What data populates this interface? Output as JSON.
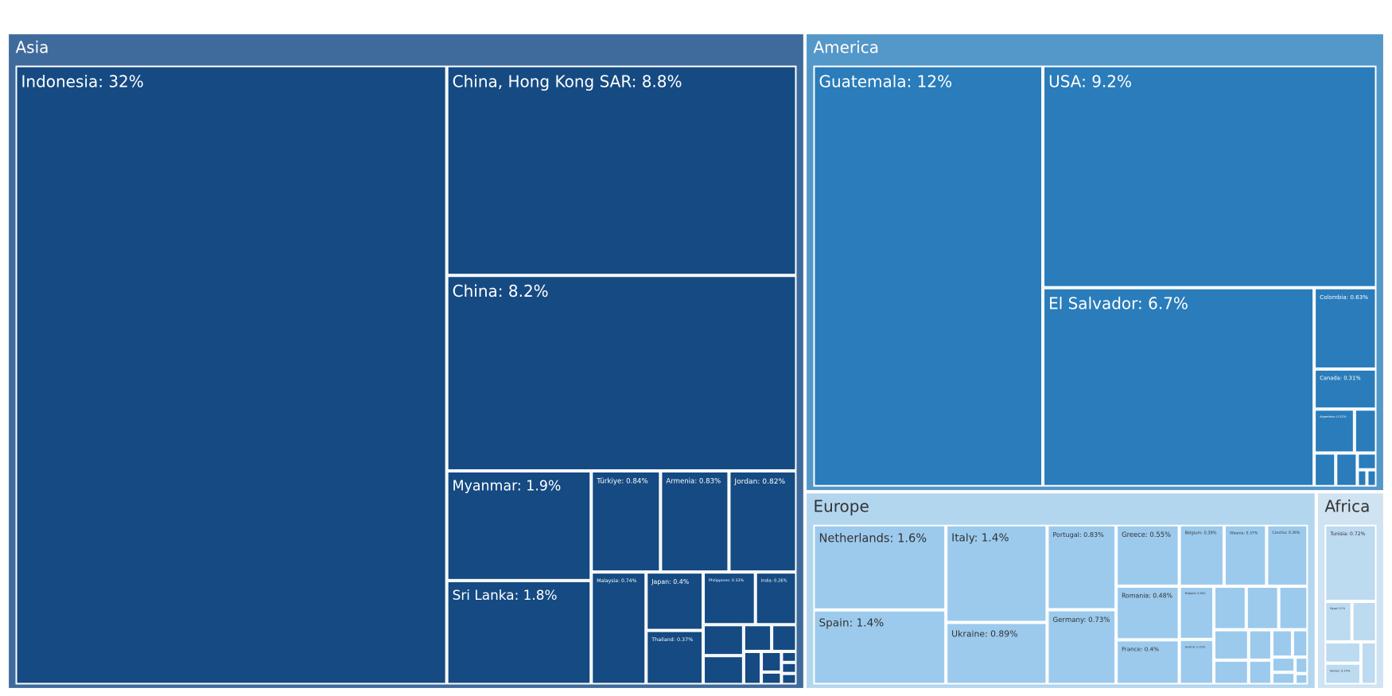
{
  "chart_data": {
    "type": "treemap",
    "unit": "%",
    "colors": {
      "Asia": {
        "parent": "#3f6a9c",
        "leaf": "#154a82",
        "text": "#ffffff"
      },
      "America": {
        "parent": "#5497c9",
        "leaf": "#2a7cba",
        "text": "#ffffff"
      },
      "Europe": {
        "parent": "#b3d6ef",
        "leaf": "#9ccaed",
        "text": "#333333"
      },
      "Africa": {
        "parent": "#cfe3f2",
        "leaf": "#bcdaf0",
        "text": "#333333"
      },
      "border": "#ffffff"
    },
    "groups": [
      {
        "name": "Asia",
        "children": [
          {
            "name": "Indonesia",
            "value": 32
          },
          {
            "name": "China, Hong Kong SAR",
            "value": 8.8
          },
          {
            "name": "China",
            "value": 8.2
          },
          {
            "name": "Myanmar",
            "value": 1.9
          },
          {
            "name": "Sri Lanka",
            "value": 1.8
          },
          {
            "name": "Türkiye",
            "value": 0.84
          },
          {
            "name": "Armenia",
            "value": 0.83
          },
          {
            "name": "Jordan",
            "value": 0.82
          },
          {
            "name": "Malaysia",
            "value": 0.74
          },
          {
            "name": "Japan",
            "value": 0.4
          },
          {
            "name": "Thailand",
            "value": 0.37
          },
          {
            "name": "Philippines",
            "value": 0.33
          },
          {
            "name": "India",
            "value": 0.26
          },
          {
            "name": "",
            "value": 0.15
          },
          {
            "name": "",
            "value": 0.14
          },
          {
            "name": "",
            "value": 0.09
          },
          {
            "name": "",
            "value": 0.08
          },
          {
            "name": "",
            "value": 0.07
          },
          {
            "name": "",
            "value": 0.05
          },
          {
            "name": "",
            "value": 0.03
          },
          {
            "name": "",
            "value": 0.02
          },
          {
            "name": "",
            "value": 0.02
          },
          {
            "name": "",
            "value": 0.02
          }
        ]
      },
      {
        "name": "America",
        "children": [
          {
            "name": "Guatemala",
            "value": 12
          },
          {
            "name": "USA",
            "value": 9.2
          },
          {
            "name": "El Salvador",
            "value": 6.7
          },
          {
            "name": "Colombia",
            "value": 0.63
          },
          {
            "name": "Canada",
            "value": 0.31
          },
          {
            "name": "Argentina",
            "value": 0.22
          },
          {
            "name": "",
            "value": 0.12
          },
          {
            "name": "",
            "value": 0.09
          },
          {
            "name": "",
            "value": 0.09
          },
          {
            "name": "",
            "value": 0.04
          },
          {
            "name": "",
            "value": 0.02
          },
          {
            "name": "",
            "value": 0.02
          }
        ]
      },
      {
        "name": "Europe",
        "children": [
          {
            "name": "Netherlands",
            "value": 1.6
          },
          {
            "name": "Spain",
            "value": 1.4
          },
          {
            "name": "Italy",
            "value": 1.4
          },
          {
            "name": "Ukraine",
            "value": 0.89
          },
          {
            "name": "Portugal",
            "value": 0.83
          },
          {
            "name": "Germany",
            "value": 0.73
          },
          {
            "name": "Greece",
            "value": 0.55
          },
          {
            "name": "Romania",
            "value": 0.48
          },
          {
            "name": "France",
            "value": 0.4
          },
          {
            "name": "Belgium",
            "value": 0.39
          },
          {
            "name": "Albania",
            "value": 0.37
          },
          {
            "name": "Czechia",
            "value": 0.36
          },
          {
            "name": "Bulgaria",
            "value": 0.26
          },
          {
            "name": "Austria",
            "value": 0.22
          },
          {
            "name": "",
            "value": 0.2
          },
          {
            "name": "",
            "value": 0.2
          },
          {
            "name": "",
            "value": 0.18
          },
          {
            "name": "",
            "value": 0.15
          },
          {
            "name": "",
            "value": 0.12
          },
          {
            "name": "",
            "value": 0.1
          },
          {
            "name": "",
            "value": 0.08
          },
          {
            "name": "",
            "value": 0.08
          },
          {
            "name": "",
            "value": 0.06
          },
          {
            "name": "",
            "value": 0.05
          },
          {
            "name": "",
            "value": 0.04
          },
          {
            "name": "",
            "value": 0.03
          },
          {
            "name": "",
            "value": 0.02
          }
        ]
      },
      {
        "name": "Africa",
        "children": [
          {
            "name": "Tunisia",
            "value": 0.72
          },
          {
            "name": "Egypt",
            "value": 0.2
          },
          {
            "name": "",
            "value": 0.18
          },
          {
            "name": "",
            "value": 0.14
          },
          {
            "name": "Kenya",
            "value": 0.14
          },
          {
            "name": "",
            "value": 0.12
          }
        ]
      }
    ]
  }
}
